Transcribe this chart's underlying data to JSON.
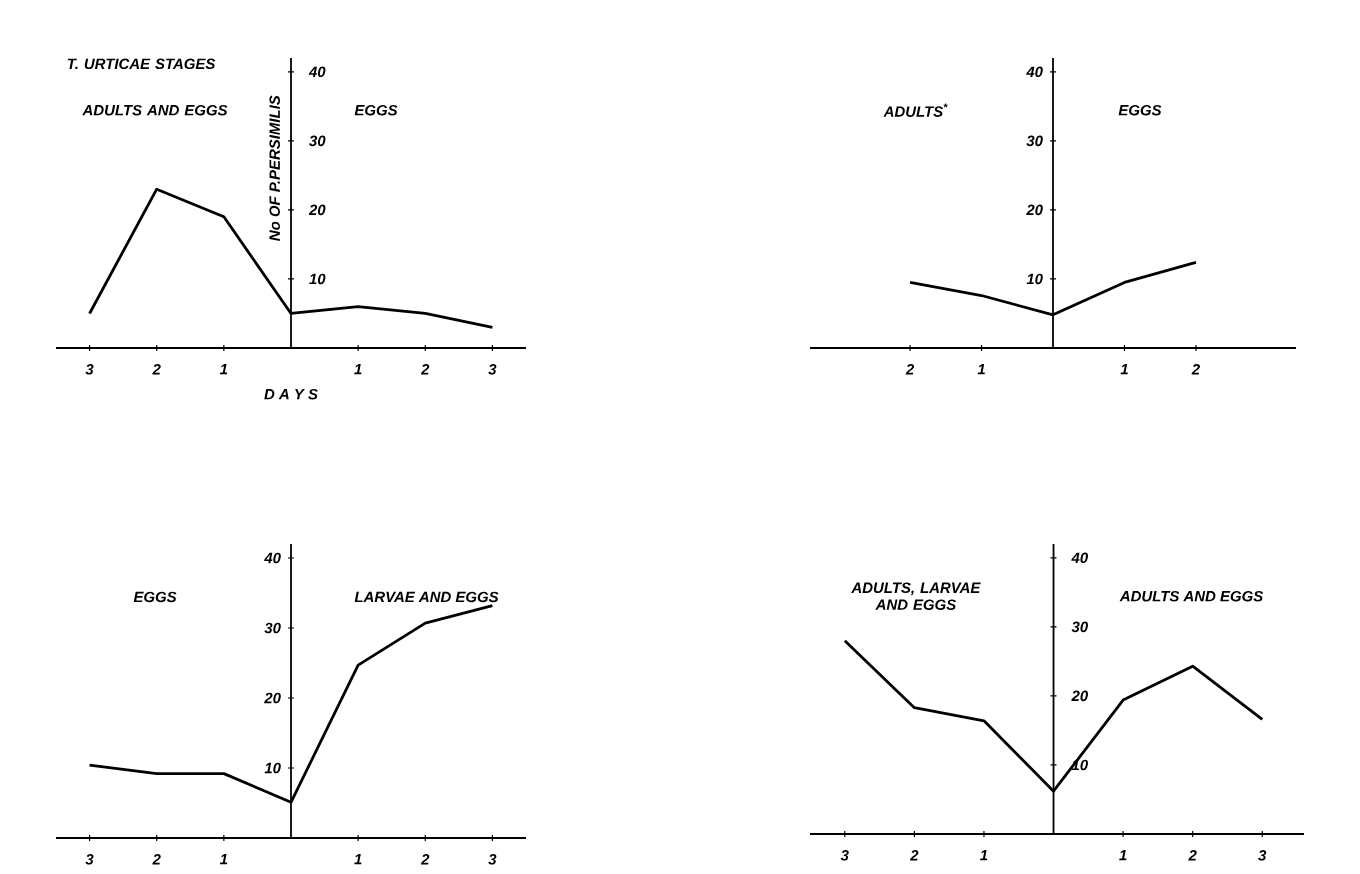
{
  "chart_data": [
    {
      "type": "line",
      "xlabel": "D A Y S",
      "ylabel": "No OF P.PERSIMILIS",
      "annotations": [
        "T. URTICAE STAGES",
        "ADULTS AND EGGS",
        "EGGS"
      ],
      "x": [
        -3,
        -2,
        -1,
        0,
        1,
        2,
        3
      ],
      "values": [
        5,
        23,
        19,
        5,
        6,
        5,
        3
      ],
      "color": "#000000",
      "xlim": [
        -3.5,
        3.5
      ],
      "ylim": [
        0,
        42
      ],
      "xticks": [
        {
          "value": -3,
          "label": "3"
        },
        {
          "value": -2,
          "label": "2"
        },
        {
          "value": -1,
          "label": "1"
        },
        {
          "value": 1,
          "label": "1"
        },
        {
          "value": 2,
          "label": "2"
        },
        {
          "value": 3,
          "label": "3"
        }
      ],
      "yticks": [
        10,
        20,
        30,
        40
      ]
    },
    {
      "type": "line",
      "annotations": [
        "ADULTS$^{*}$",
        "EGGS"
      ],
      "x": [
        -2,
        -1,
        0,
        1,
        2
      ],
      "values": [
        9.5,
        7.6,
        4.8,
        9.5,
        12.4
      ],
      "color": "#000000",
      "xlim": [
        -3.4,
        3.4
      ],
      "ylim": [
        0,
        42
      ],
      "xticks": [
        {
          "value": -2,
          "label": "2"
        },
        {
          "value": -1,
          "label": "1"
        },
        {
          "value": 1,
          "label": "1"
        },
        {
          "value": 2,
          "label": "2"
        }
      ],
      "yticks": [
        10,
        20,
        30,
        40
      ]
    },
    {
      "type": "line",
      "annotations": [
        "EGGS",
        "LARVAE AND EGGS"
      ],
      "x": [
        -3,
        -2,
        -1,
        0,
        1,
        2,
        3
      ],
      "values": [
        10.4,
        9.2,
        9.2,
        5.1,
        24.7,
        30.7,
        33.2
      ],
      "color": "#000000",
      "xlim": [
        -3.5,
        3.5
      ],
      "ylim": [
        0,
        42
      ],
      "xticks": [
        {
          "value": -3,
          "label": "3"
        },
        {
          "value": -2,
          "label": "2"
        },
        {
          "value": -1,
          "label": "1"
        },
        {
          "value": 1,
          "label": "1"
        },
        {
          "value": 2,
          "label": "2"
        },
        {
          "value": 3,
          "label": "3"
        }
      ],
      "yticks": [
        10,
        20,
        30,
        40
      ]
    },
    {
      "type": "line",
      "annotations": [
        "ADULTS, LARVAE AND EGGS",
        "ADULTS AND EGGS"
      ],
      "x": [
        -3,
        -2,
        -1,
        0,
        1,
        2,
        3
      ],
      "values": [
        28,
        18.3,
        16.4,
        6.2,
        19.4,
        24.3,
        16.6
      ],
      "color": "#000000",
      "xlim": [
        -3.5,
        3.6
      ],
      "ylim": [
        0,
        42
      ],
      "xticks": [
        {
          "value": -3,
          "label": "3"
        },
        {
          "value": -2,
          "label": "2"
        },
        {
          "value": -1,
          "label": "1"
        },
        {
          "value": 1,
          "label": "1"
        },
        {
          "value": 2,
          "label": "2"
        },
        {
          "value": 3,
          "label": "3"
        }
      ],
      "yticks": [
        10,
        20,
        30,
        40
      ]
    }
  ]
}
